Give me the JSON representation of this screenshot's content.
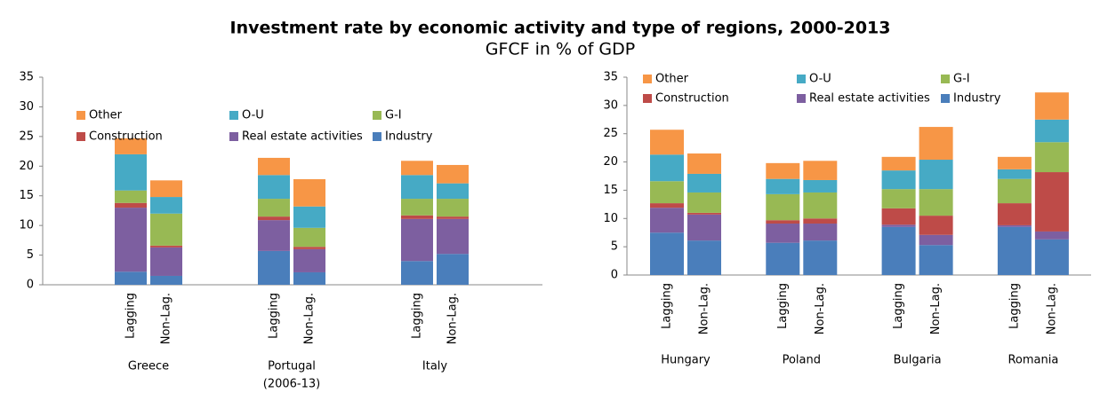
{
  "header": {
    "title": "Investment rate by economic activity and type of regions, 2000-2013",
    "subtitle": "GFCF in % of GDP"
  },
  "chart_data": [
    {
      "type": "bar",
      "stacked": true,
      "groups": [
        [
          "Greece"
        ],
        [
          "Portugal",
          "(2006-13)"
        ],
        [
          "Italy"
        ]
      ],
      "subcategories": [
        "Lagging",
        "Non-Lag."
      ],
      "ylim": [
        0,
        35
      ],
      "yticks": [
        0,
        5,
        10,
        15,
        20,
        25,
        30,
        35
      ],
      "grid": false,
      "series": [
        {
          "name": "Industry",
          "color": "#4a7ebb",
          "values": [
            2.2,
            1.5,
            5.7,
            2.1,
            4.0,
            5.2
          ]
        },
        {
          "name": "Real estate activities",
          "color": "#7d5fa0",
          "values": [
            10.8,
            4.8,
            5.2,
            3.9,
            7.1,
            5.9
          ]
        },
        {
          "name": "Construction",
          "color": "#be4b48",
          "values": [
            0.8,
            0.3,
            0.6,
            0.4,
            0.6,
            0.4
          ]
        },
        {
          "name": "G-I",
          "color": "#98b954",
          "values": [
            2.1,
            5.4,
            3.0,
            3.2,
            2.8,
            3.0
          ]
        },
        {
          "name": "O-U",
          "color": "#46aac5",
          "values": [
            6.1,
            2.8,
            4.0,
            3.6,
            4.0,
            2.6
          ]
        },
        {
          "name": "Other",
          "color": "#f79646",
          "values": [
            2.7,
            2.8,
            2.9,
            4.6,
            2.4,
            3.1
          ]
        }
      ]
    },
    {
      "type": "bar",
      "stacked": true,
      "groups": [
        [
          "Hungary"
        ],
        [
          "Poland"
        ],
        [
          "Bulgaria"
        ],
        [
          "Romania"
        ]
      ],
      "subcategories": [
        "Lagging",
        "Non-Lag."
      ],
      "ylim": [
        0,
        35
      ],
      "yticks": [
        0,
        5,
        10,
        15,
        20,
        25,
        30,
        35
      ],
      "grid": false,
      "series": [
        {
          "name": "Industry",
          "color": "#4a7ebb",
          "values": [
            7.5,
            6.1,
            5.7,
            6.1,
            8.5,
            5.3,
            8.5,
            6.3
          ]
        },
        {
          "name": "Real estate activities",
          "color": "#7d5fa0",
          "values": [
            4.4,
            4.6,
            3.4,
            3.0,
            0.4,
            1.8,
            0.3,
            1.4
          ]
        },
        {
          "name": "Construction",
          "color": "#be4b48",
          "values": [
            0.8,
            0.3,
            0.6,
            0.9,
            2.9,
            3.4,
            3.9,
            10.5
          ]
        },
        {
          "name": "G-I",
          "color": "#98b954",
          "values": [
            3.9,
            3.6,
            4.6,
            4.6,
            3.4,
            4.7,
            4.3,
            5.3
          ]
        },
        {
          "name": "O-U",
          "color": "#46aac5",
          "values": [
            4.7,
            3.3,
            2.7,
            2.2,
            3.3,
            5.2,
            1.7,
            4.0
          ]
        },
        {
          "name": "Other",
          "color": "#f79646",
          "values": [
            4.4,
            3.6,
            2.8,
            3.4,
            2.4,
            5.8,
            2.2,
            4.8
          ]
        }
      ]
    }
  ]
}
